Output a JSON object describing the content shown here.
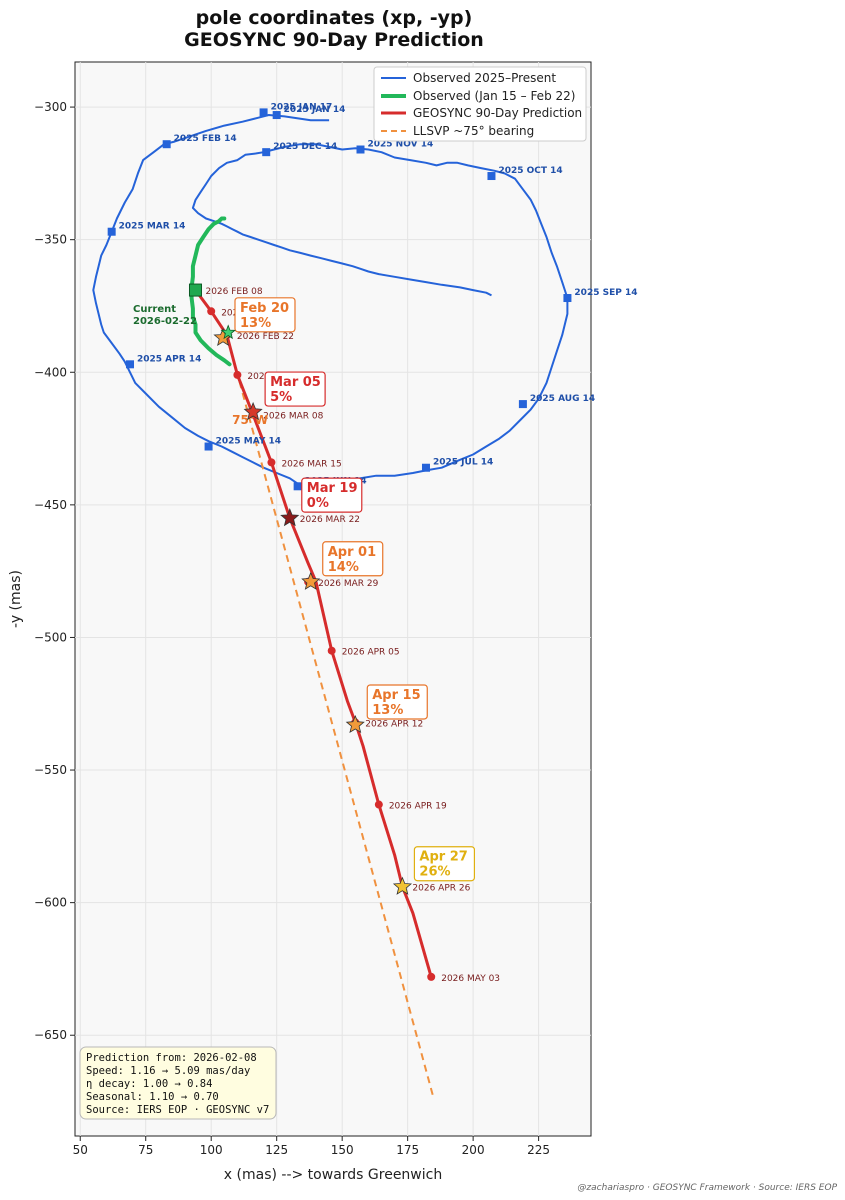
{
  "chart_data": {
    "type": "line",
    "title": "pole coordinates (xp, -yp)",
    "subtitle": "GEOSYNC 90-Day Prediction",
    "xlabel": "x (mas) --> towards Greenwich",
    "ylabel": "-y (mas)",
    "xlim": [
      48,
      245
    ],
    "ylim": [
      -688,
      -283
    ],
    "xticks": [
      50,
      75,
      100,
      125,
      150,
      175,
      200,
      225
    ],
    "yticks": [
      -300,
      -350,
      -400,
      -450,
      -500,
      -550,
      -600,
      -650
    ],
    "grid": true,
    "legend_position": "top-right",
    "colors": {
      "observed": "#2563d9",
      "recent": "#22b85a",
      "prediction": "#d62c2c",
      "llsvp": "#f0913f",
      "callout_orange": "#e8752a",
      "callout_red": "#d62c2c",
      "callout_yellow": "#e0b010"
    },
    "series": [
      {
        "name": "Observed 2025–Present",
        "x": [
          145,
          138,
          128,
          122,
          118,
          112,
          105,
          98,
          92,
          86,
          82,
          78,
          74,
          72,
          70,
          67,
          64,
          62,
          60,
          58,
          57,
          56,
          55,
          56,
          57,
          58,
          59,
          62,
          65,
          67,
          69,
          71,
          75,
          80,
          85,
          90,
          95,
          99,
          104,
          108,
          112,
          116,
          120,
          125,
          130,
          133,
          138,
          145,
          150,
          157,
          163,
          170,
          177,
          182,
          188,
          195,
          200,
          205,
          210,
          214,
          218,
          222,
          225,
          228,
          230,
          232,
          234,
          236,
          236,
          234,
          232,
          230,
          229,
          228,
          226,
          224,
          222,
          219,
          216,
          212,
          208,
          203,
          198,
          194,
          190,
          186,
          182,
          176,
          170,
          165,
          160,
          155,
          150,
          145,
          140,
          134,
          128,
          124,
          120,
          117,
          113,
          110,
          106,
          103,
          100,
          98,
          96,
          94,
          93,
          95,
          98,
          101,
          104,
          106,
          108,
          110,
          112,
          115,
          118,
          121,
          124,
          127,
          130,
          134,
          138,
          142,
          146,
          150,
          154,
          157,
          160,
          164,
          170,
          176,
          182,
          188,
          195,
          200,
          205,
          207
        ],
        "y": [
          -305,
          -305,
          -303.5,
          -303,
          -304,
          -305.5,
          -307,
          -309,
          -311,
          -313,
          -314,
          -317,
          -320,
          -325,
          -331,
          -336,
          -342,
          -347,
          -352,
          -356,
          -360,
          -364,
          -369,
          -374,
          -378,
          -382,
          -385,
          -389,
          -393,
          -396,
          -400,
          -404,
          -408,
          -413,
          -417,
          -421,
          -424,
          -426,
          -428,
          -430,
          -432,
          -434,
          -436,
          -438,
          -440,
          -442,
          -443,
          -442,
          -441,
          -440,
          -439,
          -439,
          -438,
          -437,
          -436,
          -433,
          -431,
          -428,
          -425,
          -422,
          -418,
          -414,
          -410,
          -404,
          -398,
          -392,
          -386,
          -378,
          -372,
          -366,
          -360,
          -355,
          -352,
          -349,
          -344,
          -339,
          -335,
          -331,
          -327,
          -325,
          -324,
          -323,
          -322,
          -321,
          -321,
          -322,
          -321,
          -320,
          -319,
          -317,
          -316,
          -315.5,
          -316,
          -315,
          -314,
          -314,
          -315,
          -316,
          -317,
          -317.5,
          -318,
          -320,
          -321,
          -323,
          -326,
          -329,
          -332,
          -335,
          -338,
          -340,
          -342,
          -343,
          -344,
          -345,
          -346,
          -347,
          -348,
          -349,
          -350,
          -351,
          -352,
          -353,
          -354,
          -355,
          -356,
          -357,
          -358,
          -359,
          -360,
          -361,
          -362,
          -363,
          -364,
          -365,
          -366,
          -367,
          -368,
          -369,
          -370,
          -371
        ],
        "note": "2025 observed polar-motion loop"
      },
      {
        "name": "Observed (Jan 15 – Feb 22)",
        "x": [
          105,
          104,
          103,
          101,
          99,
          97,
          95,
          94,
          93,
          93,
          92.5,
          92.5,
          93,
          93,
          94,
          94,
          96,
          99,
          102,
          105,
          107
        ],
        "y": [
          -342,
          -342,
          -343,
          -344,
          -346,
          -349,
          -352,
          -356,
          -360,
          -364,
          -368,
          -372,
          -376,
          -379,
          -382,
          -385,
          -388,
          -391,
          -393.5,
          -395.5,
          -397
        ]
      },
      {
        "name": "GEOSYNC 90-Day Prediction",
        "x": [
          94,
          100,
          106,
          110,
          116,
          123,
          130,
          137,
          140,
          146,
          152,
          155,
          158,
          164,
          170,
          173,
          177,
          184
        ],
        "y": [
          -369,
          -377,
          -386,
          -401,
          -416,
          -434,
          -455,
          -472,
          -479,
          -505,
          -524,
          -532,
          -541,
          -563,
          -582,
          -594,
          -604,
          -628
        ]
      },
      {
        "name": "LLSVP ~75° bearing",
        "x": [
          106,
          185
        ],
        "y": [
          -386,
          -674
        ]
      }
    ],
    "observed_markers": [
      {
        "label": "2025 JAN 14",
        "x": 125,
        "y": -303
      },
      {
        "label": "2025 JAN 17",
        "x": 120,
        "y": -302
      },
      {
        "label": "2025 FEB 14",
        "x": 83,
        "y": -314
      },
      {
        "label": "2025 MAR 14",
        "x": 62,
        "y": -347
      },
      {
        "label": "2025 APR 14",
        "x": 69,
        "y": -397
      },
      {
        "label": "2025 MAY 14",
        "x": 99,
        "y": -428
      },
      {
        "label": "2025 JUN 14",
        "x": 133,
        "y": -443
      },
      {
        "label": "2025 JUL 14",
        "x": 182,
        "y": -436
      },
      {
        "label": "2025 AUG 14",
        "x": 219,
        "y": -412
      },
      {
        "label": "2025 SEP 14",
        "x": 236,
        "y": -372
      },
      {
        "label": "2025 OCT 14",
        "x": 207,
        "y": -326
      },
      {
        "label": "2025 NOV 14",
        "x": 157,
        "y": -316
      },
      {
        "label": "2025 DEC 14",
        "x": 121,
        "y": -317
      }
    ],
    "prediction_points": [
      {
        "label": "2026 FEB 08",
        "x": 94,
        "y": -369
      },
      {
        "label": "2026 FEB 15",
        "x": 100,
        "y": -377
      },
      {
        "label": "2026 FEB 22",
        "x": 106,
        "y": -386
      },
      {
        "label": "2026 MAR 01",
        "x": 110,
        "y": -401
      },
      {
        "label": "2026 MAR 08",
        "x": 116,
        "y": -416
      },
      {
        "label": "2026 MAR 15",
        "x": 123,
        "y": -434
      },
      {
        "label": "2026 MAR 22",
        "x": 130,
        "y": -455
      },
      {
        "label": "2026 MAR 29",
        "x": 137,
        "y": -479
      },
      {
        "label": "2026 APR 05",
        "x": 146,
        "y": -505
      },
      {
        "label": "2026 APR 12",
        "x": 155,
        "y": -532
      },
      {
        "label": "2026 APR 19",
        "x": 164,
        "y": -563
      },
      {
        "label": "2026 APR 26",
        "x": 173,
        "y": -594
      },
      {
        "label": "2026 MAY 03",
        "x": 184,
        "y": -628
      }
    ],
    "callouts": [
      {
        "date": "Feb 20",
        "pct": "13%",
        "x": 104.5,
        "y": -387,
        "color": "orange",
        "star_fill": "#f29a3a"
      },
      {
        "date": "Mar 05",
        "pct": "5%",
        "x": 116,
        "y": -415,
        "color": "red",
        "star_fill": "#d63a2a"
      },
      {
        "date": "Mar 19",
        "pct": "0%",
        "x": 130,
        "y": -455,
        "color": "red",
        "star_fill": "#8b1a1a"
      },
      {
        "date": "Apr 01",
        "pct": "14%",
        "x": 138,
        "y": -479,
        "color": "orange",
        "star_fill": "#f29a3a"
      },
      {
        "date": "Apr 15",
        "pct": "13%",
        "x": 155,
        "y": -533,
        "color": "orange",
        "star_fill": "#f29a3a"
      },
      {
        "date": "Apr 27",
        "pct": "26%",
        "x": 173,
        "y": -594,
        "color": "yellow",
        "star_fill": "#f1c232"
      }
    ],
    "current": {
      "label_line1": "Current",
      "label_line2": "2026-02-22",
      "x": 106.5,
      "y": -385
    },
    "start_marker": {
      "x": 94,
      "y": -369
    },
    "bearing_label": "75°W",
    "info_box": [
      "Prediction from: 2026-02-08",
      "Speed: 1.16 → 5.09 mas/day",
      "η decay: 1.00 → 0.84",
      "Seasonal: 1.10 → 0.70",
      "Source: IERS EOP · GEOSYNC v7"
    ],
    "footer": "@zachariaspro · GEOSYNC Framework · Source: IERS EOP"
  }
}
